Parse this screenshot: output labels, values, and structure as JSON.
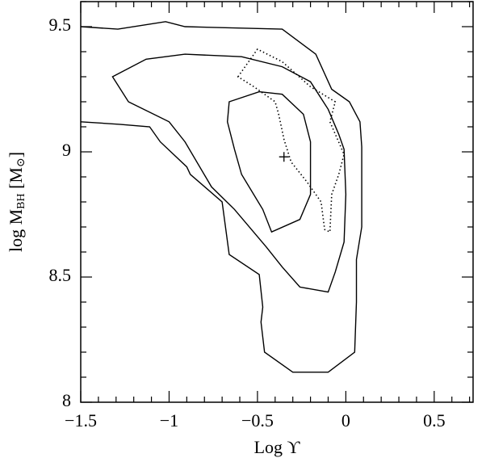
{
  "chart_data": {
    "type": "contour",
    "xlabel": "Log ϒ",
    "ylabel": [
      {
        "text": "log M"
      },
      {
        "text": "BH",
        "sub": true
      },
      {
        "text": " [M"
      },
      {
        "text": "⊙",
        "sub": true
      },
      {
        "text": "]"
      }
    ],
    "xlim": [
      -1.5,
      0.72
    ],
    "ylim": [
      8,
      9.6
    ],
    "xticks": [
      {
        "value": -1.5,
        "label": "−1.5"
      },
      {
        "value": -1,
        "label": "−1"
      },
      {
        "value": -0.5,
        "label": "−0.5"
      },
      0,
      0.5
    ],
    "yticks": [
      8,
      8.5,
      9,
      9.5
    ],
    "xminorticks": [
      -1.4,
      -1.3,
      -1.2,
      -1.1,
      -0.9,
      -0.8,
      -0.7,
      -0.6,
      -0.4,
      -0.3,
      -0.2,
      -0.1,
      0.1,
      0.2,
      0.3,
      0.4,
      0.6,
      0.7
    ],
    "yminorticks": [
      8.1,
      8.2,
      8.3,
      8.4,
      8.6,
      8.7,
      8.8,
      8.9,
      9.1,
      9.2,
      9.3,
      9.4,
      9.6
    ],
    "series": [
      {
        "color": "#000000",
        "dash": "solid",
        "closed": false,
        "x": [
          -1.5,
          -1.29,
          -1.02,
          -0.91,
          -0.36,
          -0.17,
          -0.08,
          0.02,
          0.08,
          0.09,
          0.09,
          0.06,
          0.06,
          0.05,
          -0.1,
          -0.3,
          -0.46,
          -0.48,
          -0.47,
          -0.49,
          -0.66,
          -0.7,
          -0.88,
          -0.9,
          -1.05,
          -1.11,
          -1.28,
          -1.5
        ],
        "values": [
          9.5,
          9.49,
          9.52,
          9.5,
          9.49,
          9.39,
          9.25,
          9.2,
          9.12,
          9.02,
          8.7,
          8.57,
          8.4,
          8.2,
          8.12,
          8.12,
          8.2,
          8.32,
          8.38,
          8.51,
          8.59,
          8.8,
          8.91,
          8.94,
          9.04,
          9.1,
          9.11,
          9.12
        ]
      },
      {
        "color": "#000000",
        "dash": "solid",
        "closed": true,
        "x": [
          -1.32,
          -1.13,
          -0.91,
          -0.59,
          -0.36,
          -0.2,
          -0.1,
          -0.04,
          -0.01,
          0.0,
          -0.01,
          -0.06,
          -0.1,
          -0.26,
          -0.36,
          -0.45,
          -0.63,
          -0.76,
          -0.91,
          -1.0,
          -1.23
        ],
        "values": [
          9.3,
          9.37,
          9.39,
          9.38,
          9.34,
          9.28,
          9.17,
          9.07,
          9.01,
          8.83,
          8.64,
          8.52,
          8.44,
          8.46,
          8.54,
          8.62,
          8.77,
          8.86,
          9.04,
          9.12,
          9.2
        ]
      },
      {
        "color": "#000000",
        "dash": "solid",
        "closed": true,
        "x": [
          -0.66,
          -0.49,
          -0.36,
          -0.24,
          -0.2,
          -0.2,
          -0.26,
          -0.42,
          -0.47,
          -0.59,
          -0.63,
          -0.67
        ],
        "values": [
          9.2,
          9.24,
          9.23,
          9.15,
          9.04,
          8.83,
          8.73,
          8.68,
          8.77,
          8.91,
          9.01,
          9.12
        ]
      },
      {
        "color": "#000000",
        "dash": "dotted",
        "closed": true,
        "x": [
          -0.61,
          -0.5,
          -0.36,
          -0.2,
          -0.06,
          -0.09,
          -0.01,
          -0.04,
          -0.08,
          -0.09,
          -0.12,
          -0.14,
          -0.22,
          -0.31,
          -0.35,
          -0.38,
          -0.4,
          -0.52
        ],
        "values": [
          9.3,
          9.41,
          9.36,
          9.26,
          9.2,
          9.12,
          8.99,
          8.91,
          8.83,
          8.68,
          8.69,
          8.8,
          8.88,
          8.96,
          9.05,
          9.15,
          9.2,
          9.26
        ]
      }
    ],
    "markers": {
      "x": [
        -0.35
      ],
      "values": [
        8.98
      ],
      "color": "#000000"
    }
  }
}
